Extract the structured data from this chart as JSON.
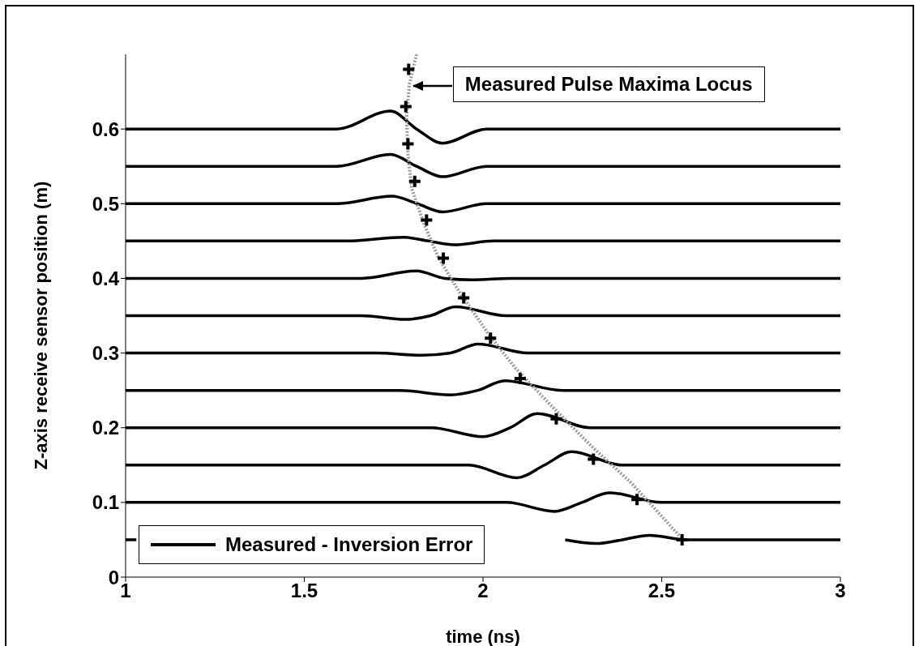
{
  "chart_data": {
    "type": "line",
    "xlabel": "time (ns)",
    "ylabel": "Z-axis receive sensor position (m)",
    "xlim": [
      1,
      3
    ],
    "ylim": [
      0,
      0.7
    ],
    "xticks": [
      1,
      1.5,
      2,
      2.5,
      3
    ],
    "yticks": [
      0,
      0.1,
      0.2,
      0.3,
      0.4,
      0.5,
      0.6
    ],
    "grid": false,
    "legend": "bottom left",
    "line_style": "solid",
    "annotations": [
      {
        "text": "Measured Pulse Maxima Locus",
        "x": 1.8,
        "y": 0.658
      }
    ],
    "series": [
      {
        "name": "Measured - Inversion Error",
        "color": "#000000",
        "x": [
          1,
          1.59,
          1.741,
          1.814,
          1.887,
          2.01,
          3
        ],
        "values": [
          0.6,
          0.6,
          0.624,
          0.6,
          0.581,
          0.6,
          0.6
        ]
      },
      {
        "color": "#000000",
        "x": [
          1,
          1.59,
          1.741,
          1.814,
          1.887,
          2.01,
          3
        ],
        "values": [
          0.55,
          0.55,
          0.566,
          0.55,
          0.536,
          0.55,
          0.55
        ]
      },
      {
        "color": "#000000",
        "x": [
          1,
          1.59,
          1.745,
          1.816,
          1.887,
          2.01,
          3
        ],
        "values": [
          0.5,
          0.5,
          0.51,
          0.5,
          0.489,
          0.5,
          0.5
        ]
      },
      {
        "color": "#000000",
        "x": [
          1,
          1.62,
          1.777,
          1.848,
          1.919,
          2.03,
          3
        ],
        "values": [
          0.45,
          0.45,
          0.455,
          0.45,
          0.445,
          0.45,
          0.45
        ]
      },
      {
        "color": "#000000",
        "x": [
          1,
          1.66,
          1.814,
          1.893,
          1.972,
          2.077,
          3
        ],
        "values": [
          0.4,
          0.4,
          0.41,
          0.4,
          0.398,
          0.4,
          0.4
        ]
      },
      {
        "color": "#000000",
        "x": [
          1,
          1.66,
          1.782,
          1.853,
          1.923,
          2.065,
          3
        ],
        "values": [
          0.35,
          0.35,
          0.345,
          0.35,
          0.362,
          0.35,
          0.35
        ]
      },
      {
        "color": "#000000",
        "x": [
          1,
          1.7,
          1.831,
          1.909,
          1.986,
          2.126,
          3
        ],
        "values": [
          0.3,
          0.3,
          0.297,
          0.3,
          0.312,
          0.3,
          0.3
        ]
      },
      {
        "color": "#000000",
        "x": [
          1,
          1.766,
          1.908,
          1.985,
          2.061,
          2.222,
          3
        ],
        "values": [
          0.25,
          0.25,
          0.244,
          0.25,
          0.263,
          0.25,
          0.25
        ]
      },
      {
        "color": "#000000",
        "x": [
          1,
          1.855,
          2.0,
          2.076,
          2.152,
          2.3,
          3
        ],
        "values": [
          0.2,
          0.2,
          0.188,
          0.2,
          0.219,
          0.2,
          0.2
        ]
      },
      {
        "color": "#000000",
        "x": [
          1,
          1.96,
          2.095,
          2.172,
          2.248,
          2.388,
          3
        ],
        "values": [
          0.15,
          0.15,
          0.133,
          0.15,
          0.168,
          0.15,
          0.15
        ]
      },
      {
        "color": "#000000",
        "x": [
          1,
          2.065,
          2.2,
          2.277,
          2.353,
          2.5,
          3
        ],
        "values": [
          0.1,
          0.1,
          0.088,
          0.1,
          0.113,
          0.1,
          0.1
        ]
      },
      {
        "color": "#000000",
        "x": [
          1,
          1.03
        ],
        "values": [
          0.05,
          0.05
        ]
      },
      {
        "color": "#000000",
        "x": [
          2.23,
          2.317,
          2.39,
          2.466,
          2.571,
          3
        ],
        "values": [
          0.05,
          0.045,
          0.05,
          0.056,
          0.05,
          0.05
        ]
      },
      {
        "type": "line",
        "color": "#999999",
        "line_style": "dotted",
        "x": [
          1.814,
          1.794,
          1.786,
          1.79,
          1.8,
          1.834,
          1.875,
          1.935,
          2.013,
          2.092,
          2.188,
          2.302,
          2.415,
          2.56
        ],
        "values": [
          0.7,
          0.66,
          0.616,
          0.567,
          0.521,
          0.474,
          0.428,
          0.381,
          0.327,
          0.279,
          0.231,
          0.176,
          0.126,
          0.05
        ]
      },
      {
        "type": "scatter",
        "color": "#000000",
        "marker": "cross",
        "x": [
          1.792,
          1.784,
          1.79,
          1.809,
          1.842,
          1.889,
          1.946,
          2.021,
          2.104,
          2.205,
          2.309,
          2.431,
          2.557
        ],
        "values": [
          0.68,
          0.63,
          0.58,
          0.53,
          0.478,
          0.427,
          0.374,
          0.32,
          0.266,
          0.212,
          0.158,
          0.104,
          0.05
        ]
      }
    ]
  }
}
